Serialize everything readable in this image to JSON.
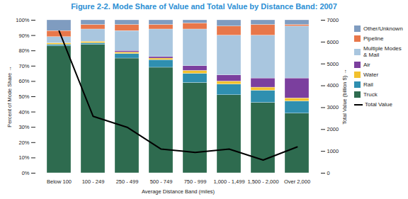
{
  "chart_data": {
    "type": "bar",
    "stacked": true,
    "title": "Figure 2-2. Mode Share of Value and Total Value by Distance Band: 2007",
    "xlabel": "Average Distance Band (miles)",
    "ylabel": "Percent of Mode Share",
    "y2label": "Total Value (billion $)",
    "categories": [
      "Below 100",
      "100 - 249",
      "250 - 499",
      "500 - 749",
      "750 - 999",
      "1,000 - 1,499",
      "1,500 - 2,000",
      "Over 2,000"
    ],
    "series": [
      {
        "name": "Truck",
        "color": "#2e6b4f",
        "values": [
          83,
          84,
          75,
          69,
          59,
          51,
          46,
          39
        ]
      },
      {
        "name": "Rail",
        "color": "#2f8fb0",
        "values": [
          1,
          1,
          3,
          5,
          6,
          7,
          8,
          8
        ]
      },
      {
        "name": "Water",
        "color": "#f2c12e",
        "values": [
          1,
          1,
          1,
          1,
          2,
          2,
          2,
          2
        ]
      },
      {
        "name": "Air",
        "color": "#7b3f9e",
        "values": [
          0,
          0,
          1,
          1,
          3,
          4,
          6,
          13
        ]
      },
      {
        "name": "Multiple Modes & Mail",
        "color": "#a9c6df",
        "values": [
          4,
          8,
          13,
          18,
          24,
          26,
          28,
          34
        ]
      },
      {
        "name": "Pipeline",
        "color": "#e8774a",
        "values": [
          4,
          3,
          4,
          3,
          4,
          6,
          7,
          1
        ]
      },
      {
        "name": "Other/Unknown",
        "color": "#7f9cc0",
        "values": [
          7,
          3,
          3,
          3,
          2,
          4,
          3,
          3
        ]
      },
      {
        "name": "Total Value",
        "type": "line",
        "axis": "y2",
        "color": "#000000",
        "values": [
          6500,
          2600,
          2100,
          1100,
          950,
          1100,
          600,
          1200
        ]
      }
    ],
    "ylim": [
      0,
      100
    ],
    "yticks": [
      {
        "value": 0,
        "label": "0%"
      },
      {
        "value": 10,
        "label": "10%"
      },
      {
        "value": 20,
        "label": "20%"
      },
      {
        "value": 30,
        "label": "30%"
      },
      {
        "value": 40,
        "label": "40%"
      },
      {
        "value": 50,
        "label": "50%"
      },
      {
        "value": 60,
        "label": "60%"
      },
      {
        "value": 70,
        "label": "70%"
      },
      {
        "value": 80,
        "label": "80%"
      },
      {
        "value": 90,
        "label": "90%"
      },
      {
        "value": 100,
        "label": "100%"
      }
    ],
    "y2lim": [
      0,
      7000
    ],
    "y2ticks": [
      0,
      1000,
      2000,
      3000,
      4000,
      5000,
      6000,
      7000
    ],
    "grid": false,
    "legend": "right"
  }
}
